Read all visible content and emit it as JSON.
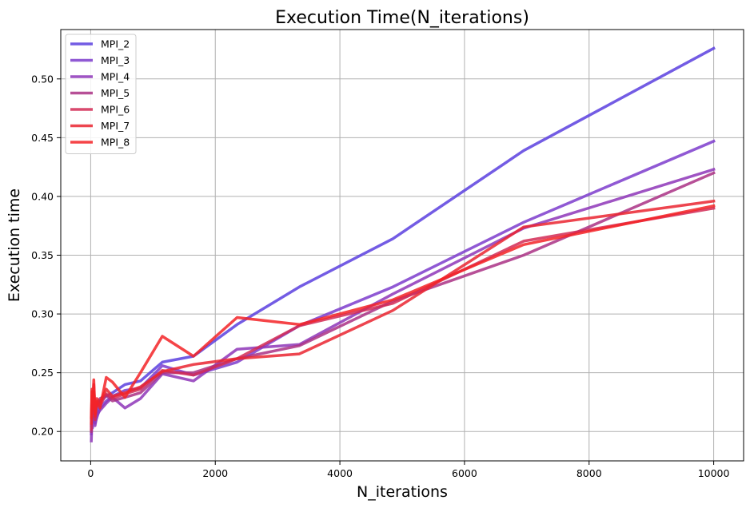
{
  "chart_data": {
    "type": "line",
    "title": "Execution Time(N_iterations)",
    "xlabel": "N_iterations",
    "ylabel": "Execution time",
    "xlim": [
      -480,
      10480
    ],
    "ylim": [
      0.175,
      0.542
    ],
    "xticks": [
      0,
      2000,
      4000,
      6000,
      8000,
      10000
    ],
    "xtick_labels": [
      "0",
      "2000",
      "4000",
      "6000",
      "8000",
      "10000"
    ],
    "yticks": [
      0.2,
      0.25,
      0.3,
      0.35,
      0.4,
      0.45,
      0.5
    ],
    "ytick_labels": [
      "0.20",
      "0.25",
      "0.30",
      "0.35",
      "0.40",
      "0.45",
      "0.50"
    ],
    "grid": true,
    "legend_position": "upper-left",
    "series": [
      {
        "name": "MPI_2",
        "color": "#5b3fdf",
        "x": [
          10,
          20,
          30,
          50,
          70,
          100,
          150,
          250,
          350,
          550,
          800,
          1150,
          1650,
          2350,
          3350,
          4850,
          6950,
          10000
        ],
        "y": [
          0.205,
          0.222,
          0.215,
          0.22,
          0.212,
          0.218,
          0.226,
          0.23,
          0.233,
          0.24,
          0.243,
          0.259,
          0.264,
          0.291,
          0.323,
          0.364,
          0.439,
          0.526
        ]
      },
      {
        "name": "MPI_3",
        "color": "#7c3ccd",
        "x": [
          10,
          20,
          30,
          50,
          70,
          100,
          150,
          250,
          350,
          550,
          800,
          1150,
          1650,
          2350,
          3350,
          4850,
          6950,
          10000
        ],
        "y": [
          0.198,
          0.215,
          0.208,
          0.214,
          0.207,
          0.212,
          0.22,
          0.226,
          0.23,
          0.235,
          0.237,
          0.256,
          0.248,
          0.259,
          0.29,
          0.323,
          0.378,
          0.447
        ]
      },
      {
        "name": "MPI_4",
        "color": "#8e36b8",
        "x": [
          10,
          20,
          30,
          50,
          70,
          100,
          150,
          250,
          350,
          550,
          800,
          1150,
          1650,
          2350,
          3350,
          4850,
          6950,
          10000
        ],
        "y": [
          0.192,
          0.21,
          0.203,
          0.212,
          0.205,
          0.214,
          0.218,
          0.224,
          0.229,
          0.22,
          0.228,
          0.249,
          0.243,
          0.27,
          0.274,
          0.317,
          0.373,
          0.423
        ]
      },
      {
        "name": "MPI_5",
        "color": "#aa3185",
        "x": [
          10,
          20,
          30,
          50,
          70,
          100,
          150,
          250,
          350,
          550,
          800,
          1150,
          1650,
          2350,
          3350,
          4850,
          6950,
          10000
        ],
        "y": [
          0.2,
          0.22,
          0.212,
          0.224,
          0.216,
          0.222,
          0.228,
          0.231,
          0.226,
          0.229,
          0.233,
          0.25,
          0.25,
          0.262,
          0.273,
          0.311,
          0.35,
          0.42
        ]
      },
      {
        "name": "MPI_6",
        "color": "#d22a55",
        "x": [
          10,
          20,
          30,
          50,
          70,
          100,
          150,
          250,
          350,
          550,
          800,
          1150,
          1650,
          2350,
          3350,
          4850,
          6950,
          10000
        ],
        "y": [
          0.202,
          0.23,
          0.215,
          0.234,
          0.21,
          0.225,
          0.222,
          0.232,
          0.228,
          0.232,
          0.236,
          0.252,
          0.248,
          0.262,
          0.29,
          0.309,
          0.362,
          0.39
        ]
      },
      {
        "name": "MPI_7",
        "color": "#ea2530",
        "x": [
          10,
          20,
          30,
          50,
          70,
          100,
          150,
          250,
          350,
          550,
          800,
          1150,
          1650,
          2350,
          3350,
          4850,
          6950,
          10000
        ],
        "y": [
          0.207,
          0.234,
          0.218,
          0.24,
          0.213,
          0.228,
          0.225,
          0.236,
          0.23,
          0.233,
          0.238,
          0.251,
          0.257,
          0.262,
          0.266,
          0.303,
          0.374,
          0.396
        ]
      },
      {
        "name": "MPI_8",
        "color": "#f32327",
        "x": [
          10,
          20,
          30,
          50,
          70,
          100,
          150,
          250,
          350,
          550,
          800,
          1150,
          1650,
          2350,
          3350,
          4850,
          6950,
          10000
        ],
        "y": [
          0.212,
          0.236,
          0.22,
          0.244,
          0.215,
          0.226,
          0.22,
          0.246,
          0.242,
          0.229,
          0.25,
          0.281,
          0.264,
          0.297,
          0.291,
          0.312,
          0.359,
          0.392
        ]
      }
    ]
  }
}
